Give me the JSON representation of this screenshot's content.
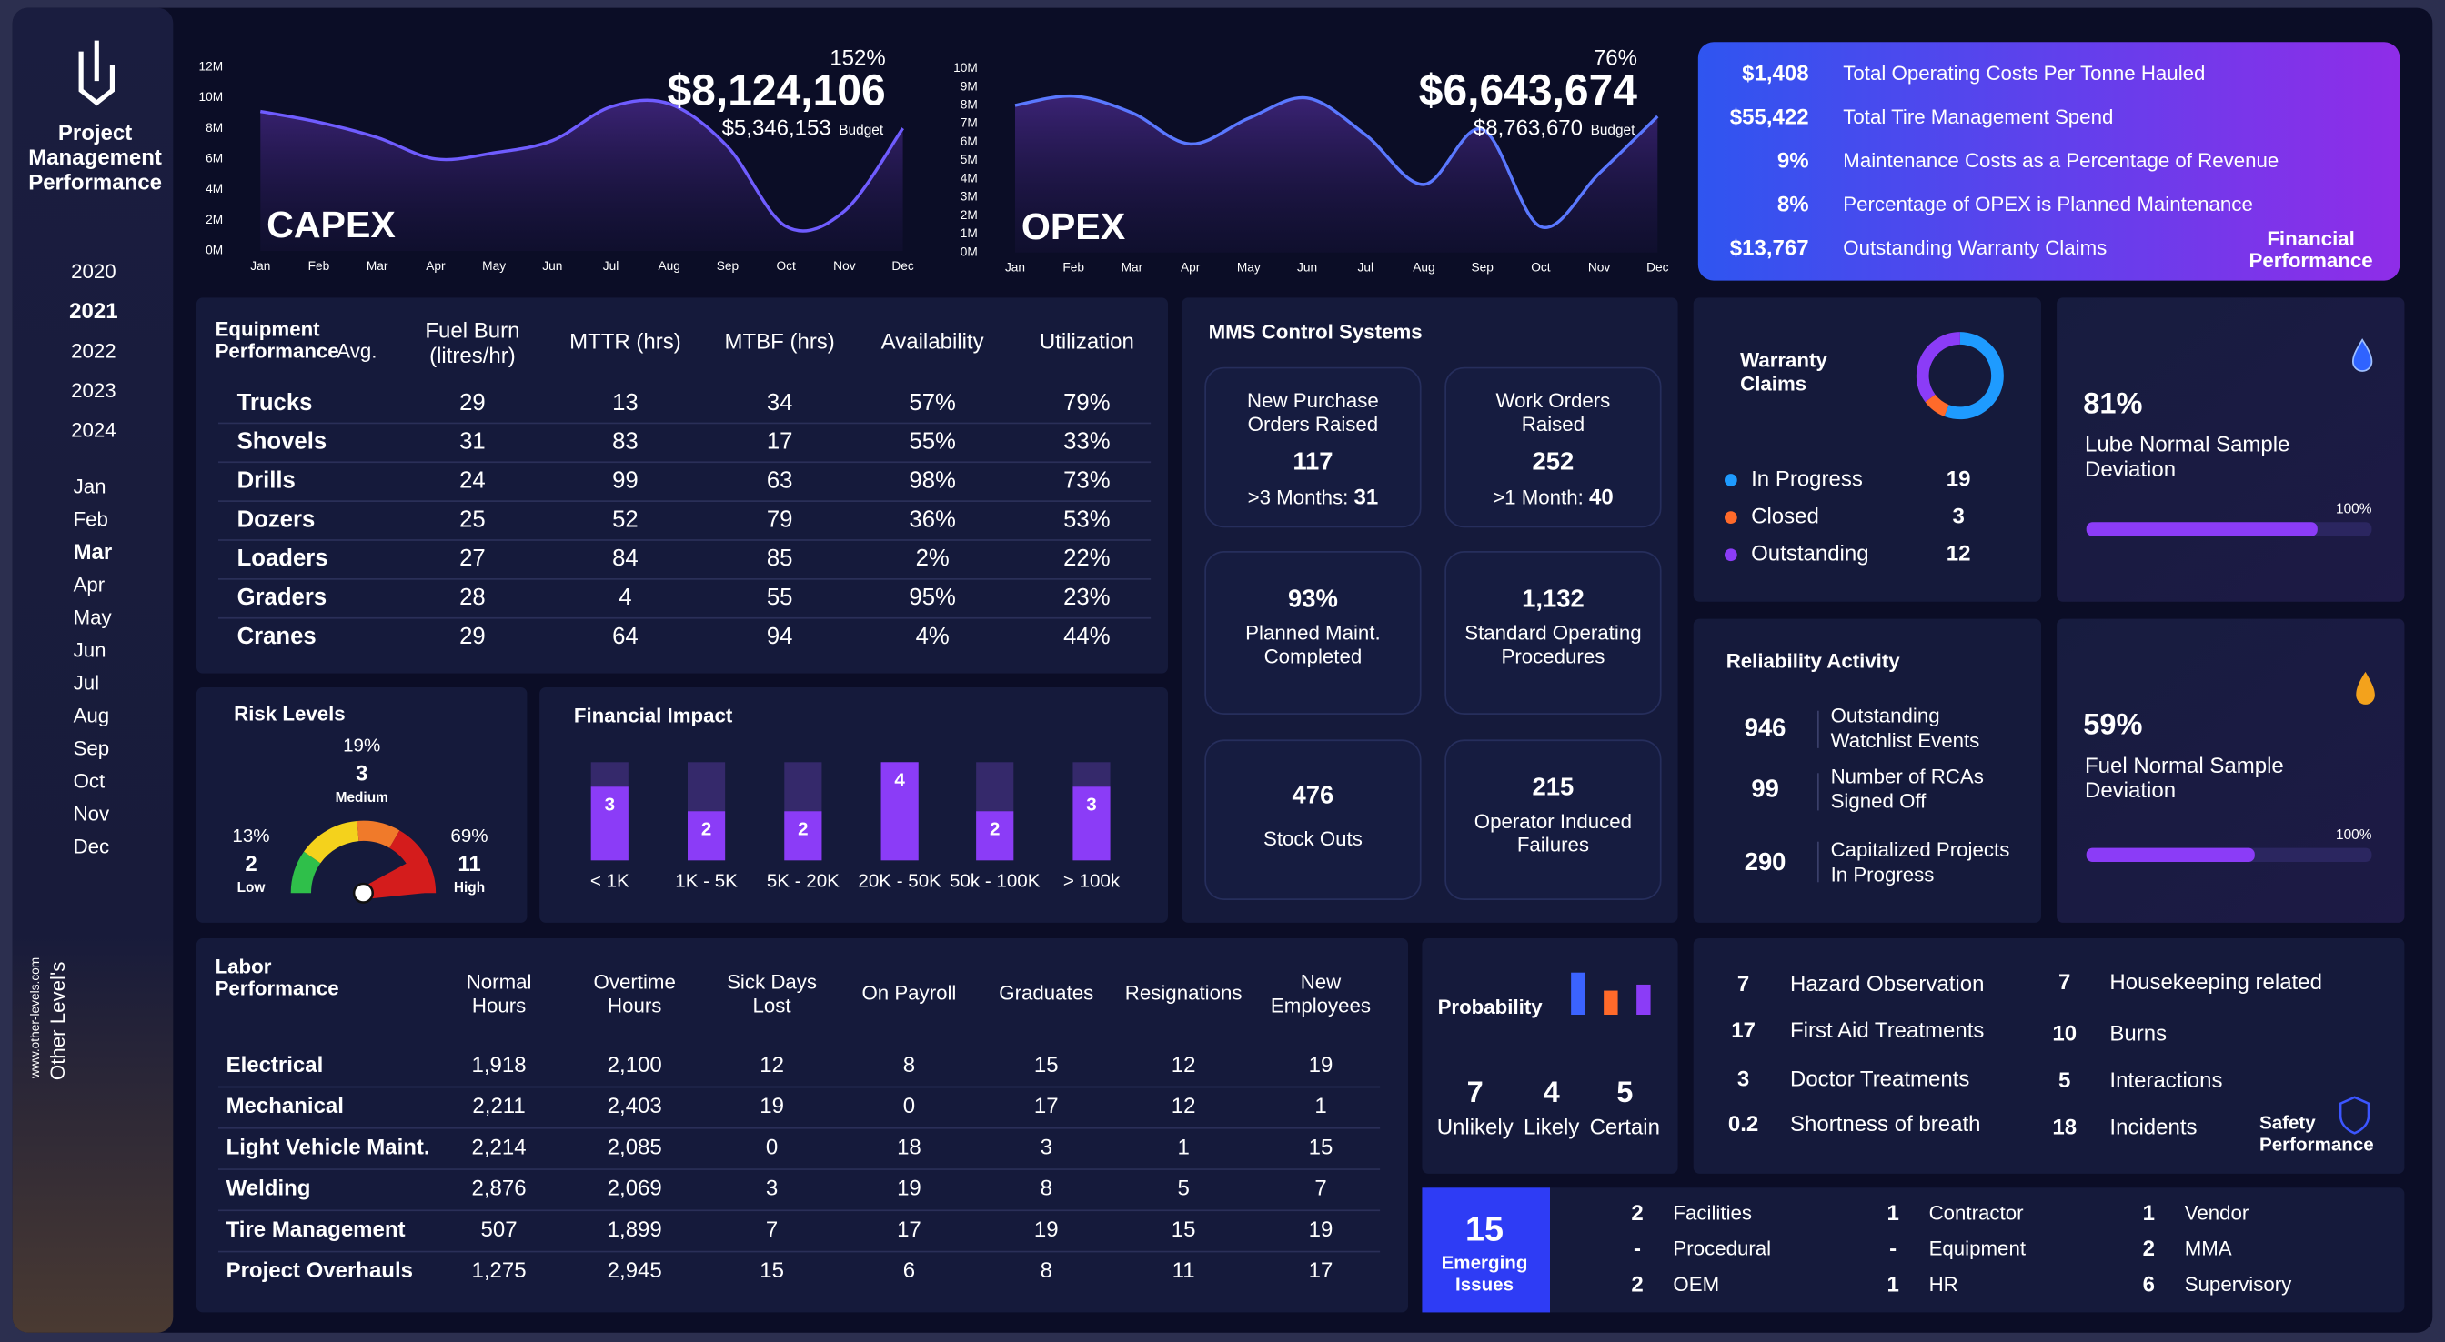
{
  "sidebar": {
    "title_lines": [
      "Project",
      "Management",
      "Performance"
    ],
    "years": [
      {
        "label": "2020"
      },
      {
        "label": "2021",
        "selected": true
      },
      {
        "label": "2022"
      },
      {
        "label": "2023"
      },
      {
        "label": "2024"
      }
    ],
    "months": [
      {
        "label": "Jan"
      },
      {
        "label": "Feb"
      },
      {
        "label": "Mar",
        "selected": true
      },
      {
        "label": "Apr"
      },
      {
        "label": "May"
      },
      {
        "label": "Jun"
      },
      {
        "label": "Jul"
      },
      {
        "label": "Aug"
      },
      {
        "label": "Sep"
      },
      {
        "label": "Oct"
      },
      {
        "label": "Nov"
      },
      {
        "label": "Dec"
      }
    ],
    "brand": "Other Level's",
    "website": "www.other-levels.com"
  },
  "chart_data": [
    {
      "type": "line",
      "title": "CAPEX",
      "categories": [
        "Jan",
        "Feb",
        "Mar",
        "Apr",
        "May",
        "Jun",
        "Jul",
        "Aug",
        "Sep",
        "Oct",
        "Nov",
        "Dec"
      ],
      "values": [
        9100000,
        8400000,
        7400000,
        6000000,
        6400000,
        7200000,
        9400000,
        9600000,
        6800000,
        1600000,
        2600000,
        8000000
      ],
      "color": "#6f5cff",
      "ylim": [
        0,
        12000000
      ],
      "yticks": [
        {
          "value": 0,
          "label": "0M"
        },
        {
          "value": 2000000,
          "label": "2M"
        },
        {
          "value": 4000000,
          "label": "4M"
        },
        {
          "value": 6000000,
          "label": "6M"
        },
        {
          "value": 8000000,
          "label": "8M"
        },
        {
          "value": 10000000,
          "label": "10M"
        },
        {
          "value": 12000000,
          "label": "12M"
        }
      ],
      "kpi": {
        "value": "$8,124,106",
        "percent": "152%",
        "budget": "$5,346,153",
        "budget_label": "Budget"
      }
    },
    {
      "type": "line",
      "title": "OPEX",
      "categories": [
        "Jan",
        "Feb",
        "Mar",
        "Apr",
        "May",
        "Jun",
        "Jul",
        "Aug",
        "Sep",
        "Oct",
        "Nov",
        "Dec"
      ],
      "values": [
        8000000,
        8500000,
        7600000,
        5900000,
        7300000,
        8400000,
        6400000,
        3700000,
        6700000,
        1400000,
        4300000,
        7400000
      ],
      "color": "#5a78ff",
      "ylim": [
        0,
        10000000
      ],
      "yticks": [
        {
          "value": 0,
          "label": "0M"
        },
        {
          "value": 1000000,
          "label": "1M"
        },
        {
          "value": 2000000,
          "label": "2M"
        },
        {
          "value": 3000000,
          "label": "3M"
        },
        {
          "value": 4000000,
          "label": "4M"
        },
        {
          "value": 5000000,
          "label": "5M"
        },
        {
          "value": 6000000,
          "label": "6M"
        },
        {
          "value": 7000000,
          "label": "7M"
        },
        {
          "value": 8000000,
          "label": "8M"
        },
        {
          "value": 9000000,
          "label": "9M"
        },
        {
          "value": 10000000,
          "label": "10M"
        }
      ],
      "kpi": {
        "value": "$6,643,674",
        "percent": "76%",
        "budget": "$8,763,670",
        "budget_label": "Budget"
      }
    },
    {
      "type": "donut",
      "title_lines": [
        "Warranty",
        "Claims"
      ],
      "categories": [
        "In Progress",
        "Closed",
        "Outstanding"
      ],
      "values": [
        19,
        3,
        12
      ],
      "colors": [
        "#1e9bff",
        "#ff6a2a",
        "#8b3cf7"
      ]
    },
    {
      "type": "progress",
      "title_lines": [
        "Lube Normal Sample",
        "Deviation"
      ],
      "value": 81,
      "value_label": "81%",
      "xlim": [
        0,
        100
      ],
      "xticks": [
        {
          "value": 100,
          "label": "100%"
        }
      ],
      "color": "#8b3cf7"
    },
    {
      "type": "progress",
      "title_lines": [
        "Fuel Normal Sample",
        "Deviation"
      ],
      "value": 59,
      "value_label": "59%",
      "xlim": [
        0,
        100
      ],
      "xticks": [
        {
          "value": 100,
          "label": "100%"
        }
      ],
      "color": "#8b3cf7"
    },
    {
      "type": "bar",
      "title": "Financial Impact",
      "categories": [
        "< 1K",
        "1K - 5K",
        "5K - 20K",
        "20K - 50K",
        "50k - 100K",
        "> 100k"
      ],
      "values": [
        3,
        2,
        2,
        4,
        2,
        3
      ],
      "ylim": [
        0,
        4
      ],
      "color": "#8b3cf7"
    },
    {
      "type": "bar",
      "title": "Probability",
      "categories": [
        "Unlikely",
        "Likely",
        "Certain"
      ],
      "values": [
        7,
        4,
        5
      ],
      "ylim": [
        0,
        7
      ],
      "colors": [
        "#3b63ff",
        "#ff6a2a",
        "#8b3cf7"
      ]
    }
  ],
  "financial_performance": {
    "title_lines": [
      "Financial",
      "Performance"
    ],
    "items": [
      {
        "value": "$1,408",
        "label": "Total Operating Costs Per Tonne Hauled"
      },
      {
        "value": "$55,422",
        "label": "Total Tire Management Spend"
      },
      {
        "value": "9%",
        "label": "Maintenance Costs as a Percentage of Revenue"
      },
      {
        "value": "8%",
        "label": "Percentage of OPEX is Planned Maintenance"
      },
      {
        "value": "$13,767",
        "label": "Outstanding Warranty Claims"
      }
    ]
  },
  "equipment": {
    "title": "Equipment",
    "subtitle": "Performance",
    "subtitle_note": "Avg.",
    "columns": [
      [
        "Fuel Burn",
        "(litres/hr)"
      ],
      [
        "MTTR (hrs)"
      ],
      [
        "MTBF (hrs)"
      ],
      [
        "Availability"
      ],
      [
        "Utilization"
      ]
    ],
    "rows": [
      [
        "Trucks",
        "29",
        "13",
        "34",
        "57%",
        "79%"
      ],
      [
        "Shovels",
        "31",
        "83",
        "17",
        "55%",
        "33%"
      ],
      [
        "Drills",
        "24",
        "99",
        "63",
        "98%",
        "73%"
      ],
      [
        "Dozers",
        "25",
        "52",
        "79",
        "36%",
        "53%"
      ],
      [
        "Loaders",
        "27",
        "84",
        "85",
        "2%",
        "22%"
      ],
      [
        "Graders",
        "28",
        "4",
        "55",
        "95%",
        "23%"
      ],
      [
        "Cranes",
        "29",
        "64",
        "94",
        "4%",
        "44%"
      ]
    ]
  },
  "mms": {
    "title": "MMS Control Systems",
    "tiles": [
      {
        "lines": [
          "New Purchase",
          "Orders Raised"
        ],
        "value": "117",
        "sub_label": ">3 Months:",
        "sub_value": "31"
      },
      {
        "lines": [
          "Work Orders",
          "Raised"
        ],
        "value": "252",
        "sub_label": ">1 Month:",
        "sub_value": "40"
      },
      {
        "value": "93%",
        "lines": [
          "Planned Maint.",
          "Completed"
        ]
      },
      {
        "value": "1,132",
        "lines": [
          "Standard Operating",
          "Procedures"
        ]
      },
      {
        "value": "476",
        "lines": [
          "Stock Outs"
        ]
      },
      {
        "value": "215",
        "lines": [
          "Operator Induced",
          "Failures"
        ]
      }
    ]
  },
  "reliability": {
    "title": "Reliability Activity",
    "items": [
      {
        "value": "946",
        "lines": [
          "Outstanding",
          "Watchlist Events"
        ]
      },
      {
        "value": "99",
        "lines": [
          "Number of RCAs",
          "Signed Off"
        ]
      },
      {
        "value": "290",
        "lines": [
          "Capitalized Projects",
          "In Progress"
        ]
      }
    ]
  },
  "risk": {
    "title": "Risk Levels",
    "levels": [
      {
        "percent": "13%",
        "count": "2",
        "label": "Low",
        "color": "#2fbf4a"
      },
      {
        "percent": "19%",
        "count": "3",
        "label": "Medium",
        "color": "#f07a2a"
      },
      {
        "percent": "69%",
        "count": "11",
        "label": "High",
        "color": "#d41c1c"
      }
    ]
  },
  "labor": {
    "title_lines": [
      "Labor",
      "Performance"
    ],
    "columns": [
      [
        "Normal",
        "Hours"
      ],
      [
        "Overtime",
        "Hours"
      ],
      [
        "Sick Days",
        "Lost"
      ],
      [
        "On Payroll"
      ],
      [
        "Graduates"
      ],
      [
        "Resignations"
      ],
      [
        "New",
        "Employees"
      ]
    ],
    "rows": [
      [
        "Electrical",
        "1,918",
        "2,100",
        "12",
        "8",
        "15",
        "12",
        "19"
      ],
      [
        "Mechanical",
        "2,211",
        "2,403",
        "19",
        "0",
        "17",
        "12",
        "1"
      ],
      [
        "Light Vehicle Maint.",
        "2,214",
        "2,085",
        "0",
        "18",
        "3",
        "1",
        "15"
      ],
      [
        "Welding",
        "2,876",
        "2,069",
        "3",
        "19",
        "8",
        "5",
        "7"
      ],
      [
        "Tire Management",
        "507",
        "1,899",
        "7",
        "17",
        "19",
        "15",
        "19"
      ],
      [
        "Project Overhauls",
        "1,275",
        "2,945",
        "15",
        "6",
        "8",
        "11",
        "17"
      ]
    ]
  },
  "safety": {
    "title_lines": [
      "Safety",
      "Performance"
    ],
    "left": [
      {
        "value": "7",
        "label": "Hazard Observation"
      },
      {
        "value": "17",
        "label": "First Aid Treatments"
      },
      {
        "value": "3",
        "label": "Doctor Treatments"
      },
      {
        "value": "0.2",
        "label": "Shortness of breath"
      }
    ],
    "right": [
      {
        "value": "7",
        "label": "Housekeeping related"
      },
      {
        "value": "10",
        "label": "Burns"
      },
      {
        "value": "5",
        "label": "Interactions"
      },
      {
        "value": "18",
        "label": "Incidents"
      }
    ]
  },
  "emerging": {
    "value": "15",
    "title_lines": [
      "Emerging",
      "Issues"
    ],
    "columns": [
      [
        {
          "value": "2",
          "label": "Facilities"
        },
        {
          "value": "-",
          "label": "Procedural"
        },
        {
          "value": "2",
          "label": "OEM"
        }
      ],
      [
        {
          "value": "1",
          "label": "Contractor"
        },
        {
          "value": "-",
          "label": "Equipment"
        },
        {
          "value": "1",
          "label": "HR"
        }
      ],
      [
        {
          "value": "1",
          "label": "Vendor"
        },
        {
          "value": "2",
          "label": "MMA"
        },
        {
          "value": "6",
          "label": "Supervisory"
        }
      ]
    ]
  }
}
